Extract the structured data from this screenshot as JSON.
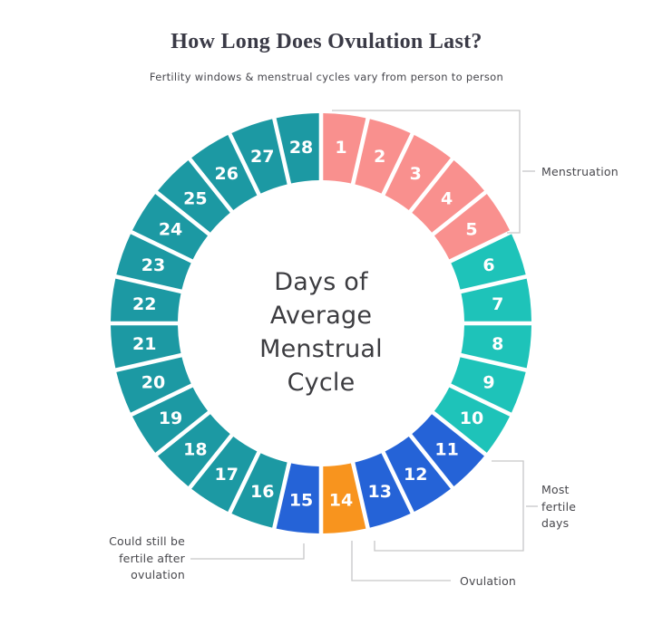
{
  "header": {
    "title": "How Long Does Ovulation Last?",
    "subtitle": "Fertility windows & menstrual cycles vary from person to person"
  },
  "wheel": {
    "total_days": 28,
    "center_label_lines": [
      "Days of",
      "Average",
      "Menstrual",
      "Cycle"
    ],
    "phases": {
      "menstruation": {
        "label": "Menstruation",
        "color": "#F9908E"
      },
      "follicular": {
        "label": "",
        "color": "#1EC3B9"
      },
      "most_fertile": {
        "label": "Most fertile days",
        "color": "#2563D7"
      },
      "ovulation": {
        "label": "Ovulation",
        "color": "#F8941E"
      },
      "post_ovulation_fertile": {
        "label": "Could still be fertile after ovulation",
        "color": "#2563D7"
      },
      "luteal": {
        "label": "",
        "color": "#1C99A3"
      }
    },
    "days": [
      {
        "day": 1,
        "phase": "menstruation"
      },
      {
        "day": 2,
        "phase": "menstruation"
      },
      {
        "day": 3,
        "phase": "menstruation"
      },
      {
        "day": 4,
        "phase": "menstruation"
      },
      {
        "day": 5,
        "phase": "menstruation"
      },
      {
        "day": 6,
        "phase": "follicular"
      },
      {
        "day": 7,
        "phase": "follicular"
      },
      {
        "day": 8,
        "phase": "follicular"
      },
      {
        "day": 9,
        "phase": "follicular"
      },
      {
        "day": 10,
        "phase": "follicular"
      },
      {
        "day": 11,
        "phase": "most_fertile"
      },
      {
        "day": 12,
        "phase": "most_fertile"
      },
      {
        "day": 13,
        "phase": "most_fertile"
      },
      {
        "day": 14,
        "phase": "ovulation"
      },
      {
        "day": 15,
        "phase": "post_ovulation_fertile"
      },
      {
        "day": 16,
        "phase": "luteal"
      },
      {
        "day": 17,
        "phase": "luteal"
      },
      {
        "day": 18,
        "phase": "luteal"
      },
      {
        "day": 19,
        "phase": "luteal"
      },
      {
        "day": 20,
        "phase": "luteal"
      },
      {
        "day": 21,
        "phase": "luteal"
      },
      {
        "day": 22,
        "phase": "luteal"
      },
      {
        "day": 23,
        "phase": "luteal"
      },
      {
        "day": 24,
        "phase": "luteal"
      },
      {
        "day": 25,
        "phase": "luteal"
      },
      {
        "day": 26,
        "phase": "luteal"
      },
      {
        "day": 27,
        "phase": "luteal"
      },
      {
        "day": 28,
        "phase": "luteal"
      }
    ]
  },
  "annotations": {
    "menstruation": "Menstruation",
    "most_fertile": "Most fertile days",
    "ovulation": "Ovulation",
    "post_fertile": "Could still be fertile after ovulation"
  },
  "line_color": "#c6c6c8"
}
